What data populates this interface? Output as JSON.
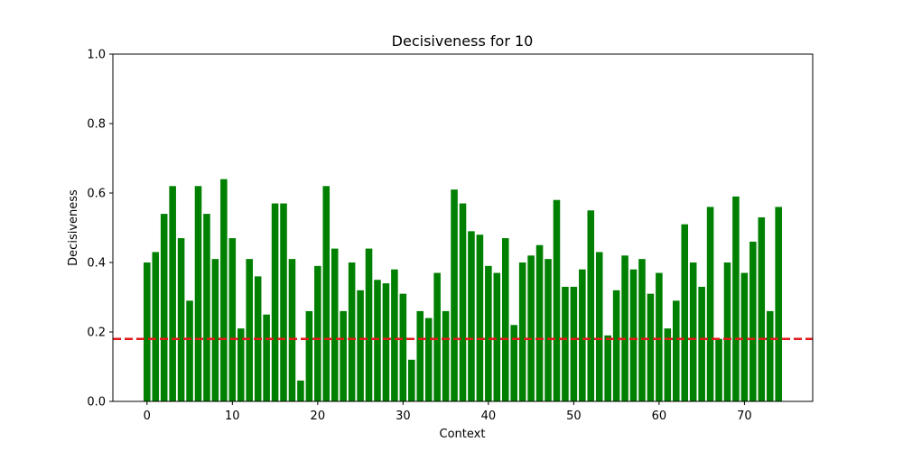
{
  "chart_data": {
    "type": "bar",
    "title": "Decisiveness for 10",
    "xlabel": "Context",
    "ylabel": "Decisiveness",
    "xlim": [
      -4,
      78
    ],
    "ylim": [
      0,
      1
    ],
    "xticks": [
      0,
      10,
      20,
      30,
      40,
      50,
      60,
      70
    ],
    "yticks": [
      0.0,
      0.2,
      0.4,
      0.6,
      0.8,
      1.0
    ],
    "ytick_labels": [
      "0.0",
      "0.2",
      "0.4",
      "0.6",
      "0.8",
      "1.0"
    ],
    "grid": false,
    "bar_color": "#008000",
    "x": [
      0,
      1,
      2,
      3,
      4,
      5,
      6,
      7,
      8,
      9,
      10,
      11,
      12,
      13,
      14,
      15,
      16,
      17,
      18,
      19,
      20,
      21,
      22,
      23,
      24,
      25,
      26,
      27,
      28,
      29,
      30,
      31,
      32,
      33,
      34,
      35,
      36,
      37,
      38,
      39,
      40,
      41,
      42,
      43,
      44,
      45,
      46,
      47,
      48,
      49,
      50,
      51,
      52,
      53,
      54,
      55,
      56,
      57,
      58,
      59,
      60,
      61,
      62,
      63,
      64,
      65,
      66,
      67,
      68,
      69,
      70,
      71,
      72,
      73,
      74
    ],
    "values": [
      0.4,
      0.43,
      0.54,
      0.62,
      0.47,
      0.29,
      0.62,
      0.54,
      0.41,
      0.64,
      0.47,
      0.21,
      0.41,
      0.36,
      0.25,
      0.57,
      0.57,
      0.41,
      0.06,
      0.26,
      0.39,
      0.62,
      0.44,
      0.26,
      0.4,
      0.32,
      0.44,
      0.35,
      0.34,
      0.38,
      0.31,
      0.12,
      0.26,
      0.24,
      0.37,
      0.26,
      0.61,
      0.57,
      0.49,
      0.48,
      0.39,
      0.37,
      0.47,
      0.22,
      0.4,
      0.42,
      0.45,
      0.41,
      0.58,
      0.33,
      0.33,
      0.38,
      0.55,
      0.43,
      0.19,
      0.32,
      0.42,
      0.38,
      0.41,
      0.31,
      0.37,
      0.21,
      0.29,
      0.51,
      0.4,
      0.33,
      0.56,
      0.18,
      0.4,
      0.59,
      0.37,
      0.46,
      0.53,
      0.26,
      0.56
    ],
    "threshold": {
      "value": 0.18,
      "color": "#e31a1c",
      "style": "dashed"
    }
  }
}
